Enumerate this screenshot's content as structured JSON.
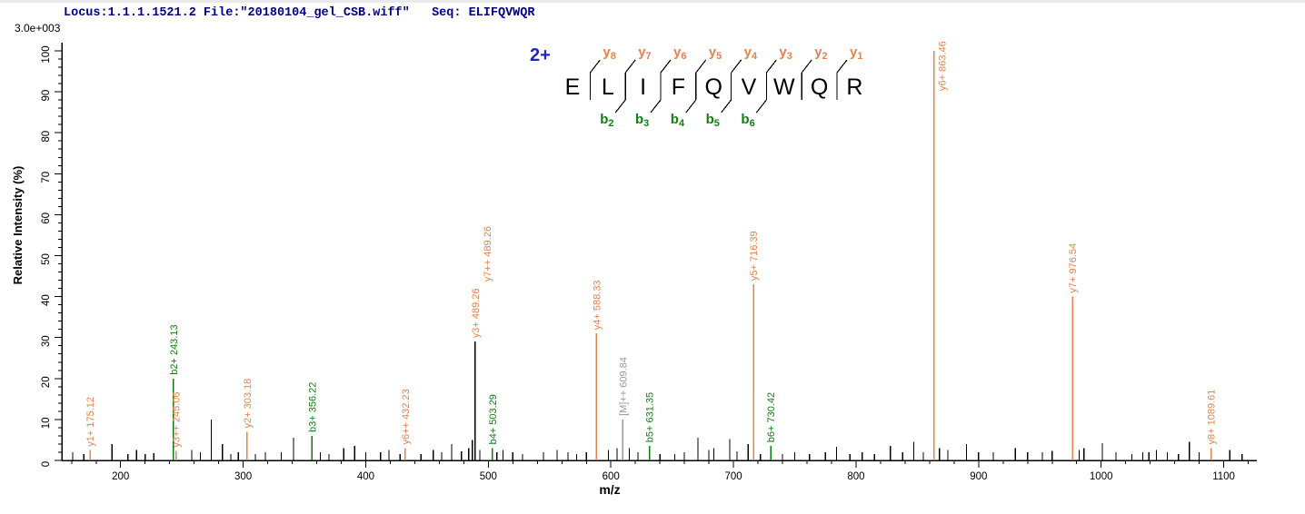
{
  "header": {
    "locus_line": "Locus:1.1.1.1521.2 File:\"20180104_gel_CSB.wiff\"   Seq: ELIFQVWQR",
    "intensity_scale": "3.0e+003"
  },
  "peptide": {
    "charge_label": "2+",
    "sequence": "ELIFQVWQR",
    "residues": [
      "E",
      "L",
      "I",
      "F",
      "Q",
      "V",
      "W",
      "Q",
      "R"
    ],
    "gaps": [
      {
        "y": "8"
      },
      {
        "y": "7",
        "b": "2"
      },
      {
        "y": "6",
        "b": "3"
      },
      {
        "y": "5",
        "b": "4"
      },
      {
        "y": "4",
        "b": "5"
      },
      {
        "y": "3",
        "b": "6"
      },
      {
        "y": "2"
      },
      {
        "y": "1"
      }
    ]
  },
  "colors": {
    "y_ion": "#E8814A",
    "b_ion": "#0F7F0F",
    "precursor": "#999999",
    "noise_peak": "#000000",
    "axis": "#000000",
    "header_blue": "#00008B",
    "charge_blue": "#2222CC"
  },
  "chart_data": {
    "type": "bar",
    "description": "MS/MS fragmentation spectrum of peptide ELIFQVWQR (2+)",
    "xlabel": "m/z",
    "ylabel": "Relative  Intensity (%)",
    "xlim": [
      152,
      1127
    ],
    "ylim": [
      0,
      100
    ],
    "x_axis": {
      "major_tick_start": 200,
      "major_tick_end": 1100,
      "major_tick_step": 100,
      "minor_tick_step": 20
    },
    "y_axis": {
      "major_tick_start": 0,
      "major_tick_end": 100,
      "major_tick_step": 10,
      "minor_tick_step": 2
    },
    "grid": false,
    "annotated_peaks": [
      {
        "label": "y1+ 175.12",
        "ion": "y",
        "mz": 175.12,
        "intensity": 2.5
      },
      {
        "label": "b2+ 243.13",
        "ion": "b",
        "mz": 243.13,
        "intensity": 20
      },
      {
        "label": "y3++ 245.06",
        "ion": "y",
        "mz": 245.06,
        "intensity": 2.3
      },
      {
        "label": "y2+ 303.18",
        "ion": "y",
        "mz": 303.18,
        "intensity": 7
      },
      {
        "label": "b3+ 356.22",
        "ion": "b",
        "mz": 356.22,
        "intensity": 6
      },
      {
        "label": "y6++ 432.23",
        "ion": "y",
        "mz": 432.23,
        "intensity": 3
      },
      {
        "label": "y3+ 489.26",
        "label2": "y7++ 489.26",
        "ion": "y",
        "mz": 489.26,
        "intensity": 29,
        "line_color": "#000000"
      },
      {
        "label": "b4+ 503.29",
        "ion": "b",
        "mz": 503.29,
        "intensity": 3
      },
      {
        "label": "y4+ 588.33",
        "ion": "y",
        "mz": 588.33,
        "intensity": 31
      },
      {
        "label": "[M]++ 609.84",
        "ion": "M",
        "mz": 609.84,
        "intensity": 10
      },
      {
        "label": "b5+ 631.35",
        "ion": "b",
        "mz": 631.35,
        "intensity": 3.5
      },
      {
        "label": "y5+ 716.39",
        "ion": "y",
        "mz": 716.39,
        "intensity": 43
      },
      {
        "label": "b6+ 730.42",
        "ion": "b",
        "mz": 730.42,
        "intensity": 3.5
      },
      {
        "label": "y6+ 863.46",
        "ion": "y",
        "mz": 863.46,
        "intensity": 100,
        "label_side": "right"
      },
      {
        "label": "y7+ 976.54",
        "ion": "y",
        "mz": 976.54,
        "intensity": 40
      },
      {
        "label": "y8+ 1089.61",
        "ion": "y",
        "mz": 1089.61,
        "intensity": 3
      }
    ],
    "noise_peaks": [
      [
        161,
        2
      ],
      [
        170,
        1.5
      ],
      [
        193,
        4
      ],
      [
        206,
        1.5
      ],
      [
        213,
        2.5
      ],
      [
        220,
        1.5
      ],
      [
        227,
        1.8
      ],
      [
        258,
        2.5
      ],
      [
        265,
        2
      ],
      [
        274,
        10
      ],
      [
        283,
        4
      ],
      [
        290,
        1.6
      ],
      [
        296,
        2
      ],
      [
        310,
        1.6
      ],
      [
        318,
        2
      ],
      [
        331,
        2
      ],
      [
        341,
        5.5
      ],
      [
        363,
        2
      ],
      [
        370,
        1.5
      ],
      [
        382,
        3
      ],
      [
        391,
        3.5
      ],
      [
        400,
        2
      ],
      [
        412,
        2
      ],
      [
        419,
        2.5
      ],
      [
        428,
        1.5
      ],
      [
        445,
        1.6
      ],
      [
        455,
        2.5
      ],
      [
        462,
        2
      ],
      [
        470,
        4
      ],
      [
        478,
        2.2
      ],
      [
        484,
        3
      ],
      [
        487,
        5
      ],
      [
        493,
        2.5
      ],
      [
        507,
        2
      ],
      [
        512,
        2.5
      ],
      [
        520,
        2
      ],
      [
        528,
        1.5
      ],
      [
        545,
        2
      ],
      [
        556,
        2.5
      ],
      [
        565,
        2
      ],
      [
        572,
        1.5
      ],
      [
        580,
        2
      ],
      [
        598,
        2.5
      ],
      [
        605,
        3
      ],
      [
        615,
        3
      ],
      [
        622,
        2
      ],
      [
        640,
        1.5
      ],
      [
        652,
        1.6
      ],
      [
        660,
        2
      ],
      [
        671,
        5.5
      ],
      [
        680,
        2.5
      ],
      [
        684,
        3
      ],
      [
        697,
        5.2
      ],
      [
        703,
        2.2
      ],
      [
        712,
        4
      ],
      [
        722,
        1.6
      ],
      [
        740,
        1.5
      ],
      [
        750,
        2
      ],
      [
        762,
        1.6
      ],
      [
        775,
        2
      ],
      [
        784,
        3.3
      ],
      [
        795,
        1.5
      ],
      [
        805,
        2
      ],
      [
        815,
        1.6
      ],
      [
        828,
        3.5
      ],
      [
        838,
        2
      ],
      [
        847,
        4.5
      ],
      [
        855,
        2
      ],
      [
        868,
        3
      ],
      [
        875,
        2.5
      ],
      [
        890,
        4
      ],
      [
        900,
        2
      ],
      [
        912,
        2
      ],
      [
        930,
        3
      ],
      [
        940,
        2
      ],
      [
        952,
        2
      ],
      [
        960,
        2.3
      ],
      [
        982,
        2.5
      ],
      [
        986,
        3
      ],
      [
        1001,
        4.2
      ],
      [
        1012,
        2
      ],
      [
        1025,
        1.5
      ],
      [
        1034,
        2
      ],
      [
        1039,
        2
      ],
      [
        1045,
        2.5
      ],
      [
        1054,
        2
      ],
      [
        1063,
        1.5
      ],
      [
        1072,
        4.5
      ],
      [
        1080,
        2
      ],
      [
        1105,
        2.5
      ],
      [
        1115,
        1.6
      ]
    ]
  }
}
